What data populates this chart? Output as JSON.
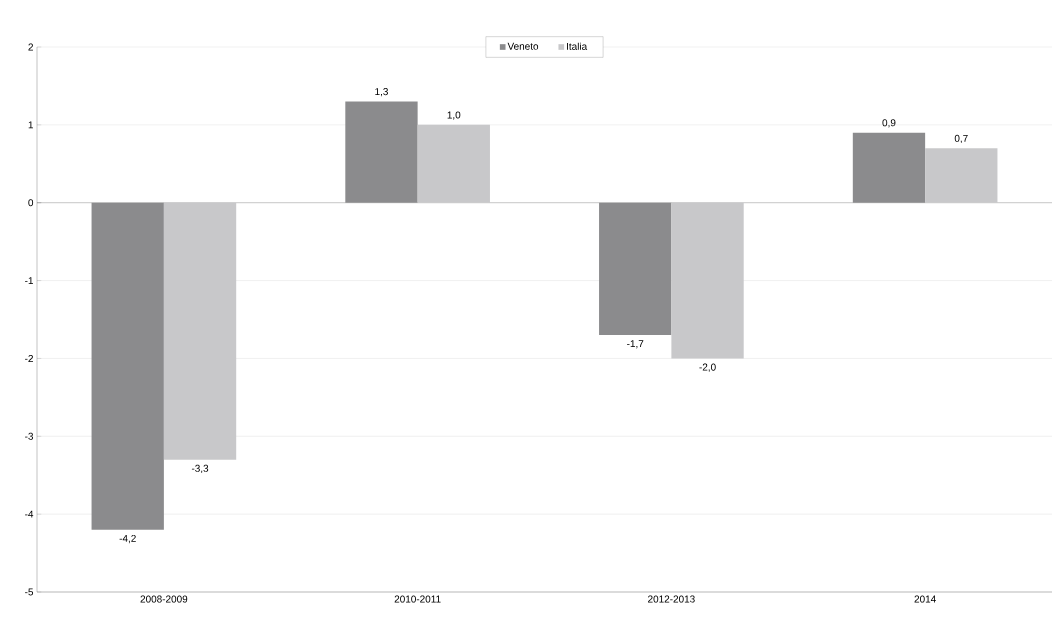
{
  "chart_data": {
    "type": "bar",
    "categories": [
      "2008-2009",
      "2010-2011",
      "2012-2013",
      "2014"
    ],
    "series": [
      {
        "name": "Veneto",
        "color": "#8b8b8d",
        "values": [
          -4.2,
          1.3,
          -1.7,
          0.9
        ],
        "value_labels": [
          "-4,2",
          "1,3",
          "-1,7",
          "0,9"
        ]
      },
      {
        "name": "Italia",
        "color": "#c8c8ca",
        "values": [
          -3.3,
          1.0,
          -2.0,
          0.7
        ],
        "value_labels": [
          "-3,3",
          "1,0",
          "-2,0",
          "0,7"
        ]
      }
    ],
    "ylim": [
      -5,
      2
    ],
    "yticks": [
      -5,
      -4,
      -3,
      -2,
      -1,
      0,
      1,
      2
    ],
    "grid": "y",
    "legend": "top"
  }
}
